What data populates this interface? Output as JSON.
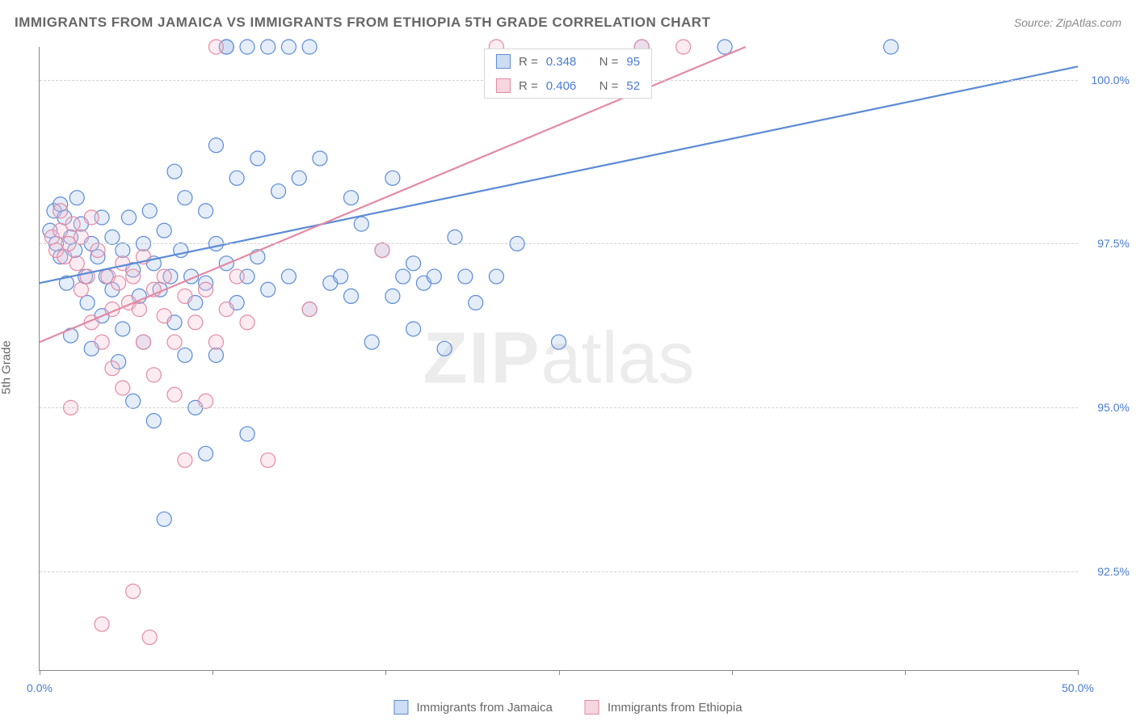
{
  "header": {
    "title": "IMMIGRANTS FROM JAMAICA VS IMMIGRANTS FROM ETHIOPIA 5TH GRADE CORRELATION CHART",
    "source_prefix": "Source: ",
    "source_link": "ZipAtlas.com"
  },
  "yaxis": {
    "label": "5th Grade"
  },
  "watermark": {
    "zip": "ZIP",
    "atlas": "atlas"
  },
  "chart": {
    "type": "scatter",
    "xlim": [
      0,
      50
    ],
    "ylim": [
      91.0,
      100.5
    ],
    "x_ticks": [
      0,
      8.33,
      16.67,
      25,
      33.33,
      41.67,
      50
    ],
    "x_tick_labels": [
      "0.0%",
      "",
      "",
      "",
      "",
      "",
      "50.0%"
    ],
    "y_ticks": [
      92.5,
      95.0,
      97.5,
      100.0
    ],
    "y_tick_labels": [
      "92.5%",
      "95.0%",
      "97.5%",
      "100.0%"
    ],
    "grid_color": "#d0d0d0",
    "axis_color": "#888888",
    "background_color": "#ffffff",
    "marker_radius": 9,
    "marker_stroke_width": 1.2,
    "marker_fill_opacity": 0.3,
    "trend_line_width": 2.2,
    "series": [
      {
        "name": "Immigrants from Jamaica",
        "color_stroke": "#5b8bd6",
        "color_fill": "#a8c5ec",
        "legend_swatch_fill": "#cdddf4",
        "legend_swatch_stroke": "#5b8bd6",
        "R_label": "R =",
        "R_value": "0.348",
        "N_label": "N =",
        "N_value": "95",
        "trend": {
          "x1": 0,
          "y1": 96.9,
          "x2": 50,
          "y2": 100.2
        },
        "points": [
          [
            0.5,
            97.7
          ],
          [
            0.7,
            98.0
          ],
          [
            0.8,
            97.5
          ],
          [
            1.0,
            98.1
          ],
          [
            1.0,
            97.3
          ],
          [
            1.2,
            97.9
          ],
          [
            1.3,
            96.9
          ],
          [
            1.5,
            97.6
          ],
          [
            1.5,
            96.1
          ],
          [
            1.7,
            97.4
          ],
          [
            1.8,
            98.2
          ],
          [
            2.0,
            97.8
          ],
          [
            2.2,
            97.0
          ],
          [
            2.3,
            96.6
          ],
          [
            2.5,
            97.5
          ],
          [
            2.5,
            95.9
          ],
          [
            2.8,
            97.3
          ],
          [
            3.0,
            97.9
          ],
          [
            3.0,
            96.4
          ],
          [
            3.2,
            97.0
          ],
          [
            3.5,
            97.6
          ],
          [
            3.5,
            96.8
          ],
          [
            3.8,
            95.7
          ],
          [
            4.0,
            97.4
          ],
          [
            4.0,
            96.2
          ],
          [
            4.3,
            97.9
          ],
          [
            4.5,
            97.1
          ],
          [
            4.5,
            95.1
          ],
          [
            4.8,
            96.7
          ],
          [
            5.0,
            97.5
          ],
          [
            5.0,
            96.0
          ],
          [
            5.3,
            98.0
          ],
          [
            5.5,
            97.2
          ],
          [
            5.5,
            94.8
          ],
          [
            5.8,
            96.8
          ],
          [
            6.0,
            97.7
          ],
          [
            6.0,
            93.3
          ],
          [
            6.3,
            97.0
          ],
          [
            6.5,
            98.6
          ],
          [
            6.5,
            96.3
          ],
          [
            6.8,
            97.4
          ],
          [
            7.0,
            98.2
          ],
          [
            7.0,
            95.8
          ],
          [
            7.3,
            97.0
          ],
          [
            7.5,
            96.6
          ],
          [
            7.5,
            95.0
          ],
          [
            8.0,
            98.0
          ],
          [
            8.0,
            96.9
          ],
          [
            8.0,
            94.3
          ],
          [
            8.5,
            97.5
          ],
          [
            8.5,
            99.0
          ],
          [
            8.5,
            95.8
          ],
          [
            9.0,
            100.5
          ],
          [
            9.0,
            97.2
          ],
          [
            9.0,
            100.5
          ],
          [
            9.5,
            98.5
          ],
          [
            9.5,
            96.6
          ],
          [
            10.0,
            100.5
          ],
          [
            10.0,
            97.0
          ],
          [
            10.0,
            94.6
          ],
          [
            10.5,
            98.8
          ],
          [
            10.5,
            97.3
          ],
          [
            11.0,
            100.5
          ],
          [
            11.0,
            96.8
          ],
          [
            11.5,
            98.3
          ],
          [
            12.0,
            100.5
          ],
          [
            12.0,
            97.0
          ],
          [
            12.5,
            98.5
          ],
          [
            13.0,
            100.5
          ],
          [
            13.0,
            96.5
          ],
          [
            13.5,
            98.8
          ],
          [
            14.0,
            96.9
          ],
          [
            14.5,
            97.0
          ],
          [
            15.0,
            98.2
          ],
          [
            15.0,
            96.7
          ],
          [
            15.5,
            97.8
          ],
          [
            16.0,
            96.0
          ],
          [
            16.5,
            97.4
          ],
          [
            17.0,
            98.5
          ],
          [
            17.0,
            96.7
          ],
          [
            17.5,
            97.0
          ],
          [
            18.0,
            97.2
          ],
          [
            18.0,
            96.2
          ],
          [
            18.5,
            96.9
          ],
          [
            19.0,
            97.0
          ],
          [
            19.5,
            95.9
          ],
          [
            20.0,
            97.6
          ],
          [
            20.5,
            97.0
          ],
          [
            21.0,
            96.6
          ],
          [
            22.0,
            97.0
          ],
          [
            23.0,
            97.5
          ],
          [
            25.0,
            96.0
          ],
          [
            29.0,
            100.5
          ],
          [
            33.0,
            100.5
          ],
          [
            41.0,
            100.5
          ]
        ]
      },
      {
        "name": "Immigrants from Ethiopia",
        "color_stroke": "#e38aa4",
        "color_fill": "#f4c1d0",
        "legend_swatch_fill": "#f7d6e0",
        "legend_swatch_stroke": "#e38aa4",
        "R_label": "R =",
        "R_value": "0.406",
        "N_label": "N =",
        "N_value": "52",
        "trend": {
          "x1": 0,
          "y1": 96.0,
          "x2": 34,
          "y2": 100.5
        },
        "points": [
          [
            0.6,
            97.6
          ],
          [
            0.8,
            97.4
          ],
          [
            1.0,
            97.7
          ],
          [
            1.0,
            98.0
          ],
          [
            1.2,
            97.3
          ],
          [
            1.4,
            97.5
          ],
          [
            1.5,
            95.0
          ],
          [
            1.6,
            97.8
          ],
          [
            1.8,
            97.2
          ],
          [
            2.0,
            97.6
          ],
          [
            2.0,
            96.8
          ],
          [
            2.3,
            97.0
          ],
          [
            2.5,
            97.9
          ],
          [
            2.5,
            96.3
          ],
          [
            2.8,
            97.4
          ],
          [
            3.0,
            96.0
          ],
          [
            3.0,
            91.7
          ],
          [
            3.3,
            97.0
          ],
          [
            3.5,
            96.5
          ],
          [
            3.5,
            95.6
          ],
          [
            3.8,
            96.9
          ],
          [
            4.0,
            97.2
          ],
          [
            4.0,
            95.3
          ],
          [
            4.3,
            96.6
          ],
          [
            4.5,
            97.0
          ],
          [
            4.5,
            92.2
          ],
          [
            4.8,
            96.5
          ],
          [
            5.0,
            97.3
          ],
          [
            5.0,
            96.0
          ],
          [
            5.3,
            91.5
          ],
          [
            5.5,
            96.8
          ],
          [
            5.5,
            95.5
          ],
          [
            6.0,
            96.4
          ],
          [
            6.0,
            97.0
          ],
          [
            6.5,
            96.0
          ],
          [
            6.5,
            95.2
          ],
          [
            7.0,
            96.7
          ],
          [
            7.0,
            94.2
          ],
          [
            7.5,
            96.3
          ],
          [
            8.0,
            95.1
          ],
          [
            8.0,
            96.8
          ],
          [
            8.5,
            96.0
          ],
          [
            8.5,
            100.5
          ],
          [
            9.0,
            96.5
          ],
          [
            9.5,
            97.0
          ],
          [
            10.0,
            96.3
          ],
          [
            11.0,
            94.2
          ],
          [
            13.0,
            96.5
          ],
          [
            16.5,
            97.4
          ],
          [
            22.0,
            100.5
          ],
          [
            29.0,
            100.5
          ],
          [
            31.0,
            100.5
          ]
        ]
      }
    ]
  },
  "bottom_legend": {
    "series1": "Immigrants from Jamaica",
    "series2": "Immigrants from Ethiopia"
  }
}
